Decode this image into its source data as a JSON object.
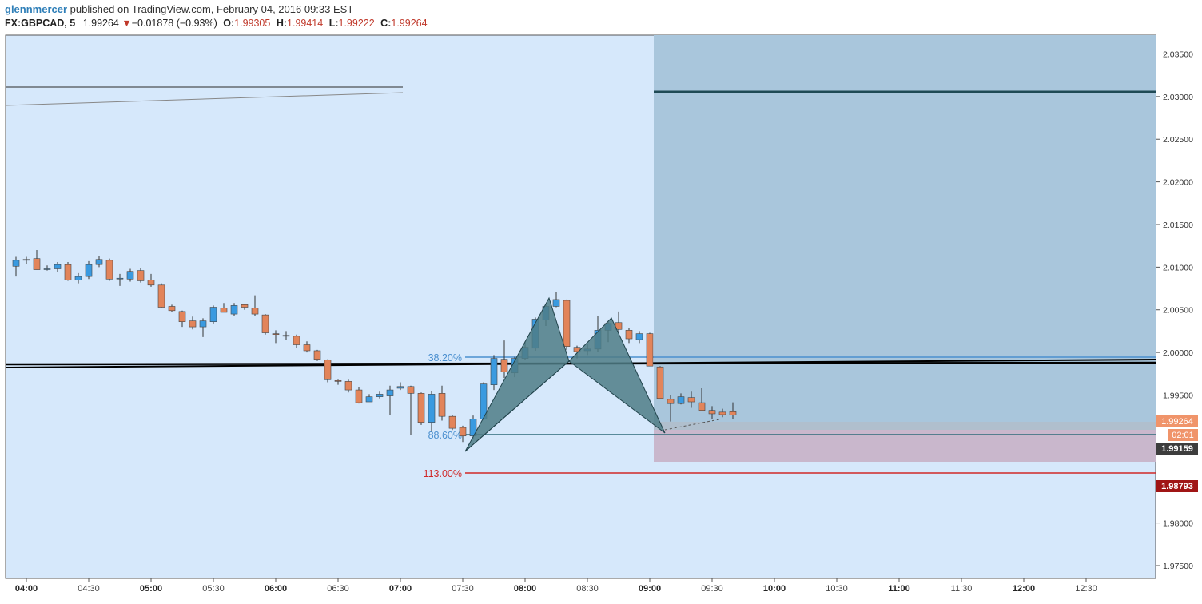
{
  "header": {
    "author": "glennmercer",
    "published_text": "published on TradingView.com, February 04, 2016 09:33 EST"
  },
  "symbol_bar": {
    "symbol": "FX:GBPCAD, 5",
    "last": "1.99264",
    "change": "−0.01878 (−0.93%)",
    "open_label": "O:",
    "open": "1.99305",
    "high_label": "H:",
    "high": "1.99414",
    "low_label": "L:",
    "low": "1.99222",
    "close_label": "C:",
    "close": "1.99264"
  },
  "colors": {
    "background": "#d6e8fb",
    "up": "#3a9ae0",
    "down": "#e2845a",
    "target_zone": "#a9c6dc",
    "stop_zone": "#c9b7cc",
    "harmonic_fill": "#4f7c86",
    "fib_38": "#4a8fcf",
    "fib_886": "#2f6b7a",
    "fib_113": "#d02828"
  },
  "price_axis": {
    "ticks": [
      "2.03500",
      "2.03000",
      "2.02500",
      "2.02000",
      "2.01500",
      "2.01000",
      "2.00500",
      "2.00000",
      "1.99500",
      "1.98000",
      "1.97500"
    ],
    "labels": {
      "last_price": "1.99264",
      "countdown": "02:01",
      "entry": "1.99159",
      "stop": "1.98793"
    }
  },
  "time_axis": {
    "ticks": [
      "04:00",
      "04:30",
      "05:00",
      "05:30",
      "06:00",
      "06:30",
      "07:00",
      "07:30",
      "08:00",
      "08:30",
      "09:00",
      "09:30",
      "10:00",
      "10:30",
      "11:00",
      "11:30",
      "12:00",
      "12:30"
    ]
  },
  "fib_labels": {
    "fib_38": "38.20%",
    "fib_886": "88.60%",
    "fib_113": "113.00%"
  },
  "chart_data": {
    "type": "candlestick",
    "symbol": "FX:GBPCAD",
    "interval": "5",
    "ylim": [
      1.9735,
      2.0372
    ],
    "candles": [
      {
        "t": "03:55",
        "o": 2.0101,
        "h": 2.0112,
        "l": 2.0089,
        "c": 2.0108
      },
      {
        "t": "04:00",
        "o": 2.0108,
        "h": 2.0112,
        "l": 2.0104,
        "c": 2.0109
      },
      {
        "t": "04:05",
        "o": 2.011,
        "h": 2.012,
        "l": 2.0097,
        "c": 2.0097
      },
      {
        "t": "04:10",
        "o": 2.0098,
        "h": 2.0102,
        "l": 2.0096,
        "c": 2.0098
      },
      {
        "t": "04:15",
        "o": 2.0098,
        "h": 2.0106,
        "l": 2.0094,
        "c": 2.0103
      },
      {
        "t": "04:20",
        "o": 2.0103,
        "h": 2.0106,
        "l": 2.0084,
        "c": 2.0085
      },
      {
        "t": "04:25",
        "o": 2.0085,
        "h": 2.0093,
        "l": 2.0081,
        "c": 2.0089
      },
      {
        "t": "04:30",
        "o": 2.0089,
        "h": 2.0107,
        "l": 2.0086,
        "c": 2.0103
      },
      {
        "t": "04:35",
        "o": 2.0103,
        "h": 2.0113,
        "l": 2.01,
        "c": 2.0109
      },
      {
        "t": "04:40",
        "o": 2.0108,
        "h": 2.011,
        "l": 2.0084,
        "c": 2.0086
      },
      {
        "t": "04:45",
        "o": 2.0087,
        "h": 2.0092,
        "l": 2.0078,
        "c": 2.0087
      },
      {
        "t": "04:50",
        "o": 2.0086,
        "h": 2.0098,
        "l": 2.0083,
        "c": 2.0095
      },
      {
        "t": "04:55",
        "o": 2.0096,
        "h": 2.0099,
        "l": 2.0082,
        "c": 2.0084
      },
      {
        "t": "05:00",
        "o": 2.0085,
        "h": 2.0092,
        "l": 2.0077,
        "c": 2.0079
      },
      {
        "t": "05:05",
        "o": 2.0079,
        "h": 2.0081,
        "l": 2.0052,
        "c": 2.0053
      },
      {
        "t": "05:10",
        "o": 2.0054,
        "h": 2.0056,
        "l": 2.0047,
        "c": 2.0049
      },
      {
        "t": "05:15",
        "o": 2.0048,
        "h": 2.0049,
        "l": 2.003,
        "c": 2.0036
      },
      {
        "t": "05:20",
        "o": 2.0037,
        "h": 2.0042,
        "l": 2.0027,
        "c": 2.003
      },
      {
        "t": "05:25",
        "o": 2.003,
        "h": 2.004,
        "l": 2.0018,
        "c": 2.0037
      },
      {
        "t": "05:30",
        "o": 2.0036,
        "h": 2.0055,
        "l": 2.0034,
        "c": 2.0053
      },
      {
        "t": "05:35",
        "o": 2.0052,
        "h": 2.0058,
        "l": 2.0047,
        "c": 2.0047
      },
      {
        "t": "05:40",
        "o": 2.0045,
        "h": 2.0058,
        "l": 2.0043,
        "c": 2.0055
      },
      {
        "t": "05:45",
        "o": 2.0056,
        "h": 2.0057,
        "l": 2.005,
        "c": 2.0053
      },
      {
        "t": "05:50",
        "o": 2.0052,
        "h": 2.0067,
        "l": 2.0043,
        "c": 2.0045
      },
      {
        "t": "05:55",
        "o": 2.0044,
        "h": 2.0045,
        "l": 2.0021,
        "c": 2.0023
      },
      {
        "t": "06:00",
        "o": 2.0022,
        "h": 2.0026,
        "l": 2.0011,
        "c": 2.0021
      },
      {
        "t": "06:05",
        "o": 2.002,
        "h": 2.0025,
        "l": 2.0015,
        "c": 2.0019
      },
      {
        "t": "06:10",
        "o": 2.0019,
        "h": 2.0021,
        "l": 2.0005,
        "c": 2.0009
      },
      {
        "t": "06:15",
        "o": 2.0009,
        "h": 2.0013,
        "l": 2.0,
        "c": 2.0002
      },
      {
        "t": "06:20",
        "o": 2.0002,
        "h": 2.0003,
        "l": 1.999,
        "c": 1.9992
      },
      {
        "t": "06:25",
        "o": 1.9991,
        "h": 1.9992,
        "l": 1.9965,
        "c": 1.9968
      },
      {
        "t": "06:30",
        "o": 1.9967,
        "h": 1.9968,
        "l": 1.9962,
        "c": 1.9966
      },
      {
        "t": "06:35",
        "o": 1.9966,
        "h": 1.9968,
        "l": 1.9953,
        "c": 1.9956
      },
      {
        "t": "06:40",
        "o": 1.9956,
        "h": 1.9959,
        "l": 1.994,
        "c": 1.9941
      },
      {
        "t": "06:45",
        "o": 1.9942,
        "h": 1.9951,
        "l": 1.9942,
        "c": 1.9948
      },
      {
        "t": "06:50",
        "o": 1.9948,
        "h": 1.9954,
        "l": 1.9946,
        "c": 1.9951
      },
      {
        "t": "06:55",
        "o": 1.9949,
        "h": 1.9961,
        "l": 1.9927,
        "c": 1.9956
      },
      {
        "t": "07:00",
        "o": 1.9958,
        "h": 1.9965,
        "l": 1.9956,
        "c": 1.996
      },
      {
        "t": "07:05",
        "o": 1.996,
        "h": 1.9961,
        "l": 1.9903,
        "c": 1.9952
      },
      {
        "t": "07:10",
        "o": 1.9952,
        "h": 1.9953,
        "l": 1.9915,
        "c": 1.9918
      },
      {
        "t": "07:15",
        "o": 1.9918,
        "h": 1.9955,
        "l": 1.9907,
        "c": 1.9951
      },
      {
        "t": "07:20",
        "o": 1.9952,
        "h": 1.9961,
        "l": 1.992,
        "c": 1.9925
      },
      {
        "t": "07:25",
        "o": 1.9925,
        "h": 1.9927,
        "l": 1.9909,
        "c": 1.9911
      },
      {
        "t": "07:30",
        "o": 1.9912,
        "h": 1.9914,
        "l": 1.9895,
        "c": 1.9902
      },
      {
        "t": "07:35",
        "o": 1.9902,
        "h": 1.9926,
        "l": 1.9899,
        "c": 1.9922
      },
      {
        "t": "07:40",
        "o": 1.9922,
        "h": 1.9965,
        "l": 1.9921,
        "c": 1.9963
      },
      {
        "t": "07:45",
        "o": 1.9962,
        "h": 1.9997,
        "l": 1.9956,
        "c": 1.9993
      },
      {
        "t": "07:50",
        "o": 1.9992,
        "h": 2.0014,
        "l": 1.997,
        "c": 1.9977
      },
      {
        "t": "07:55",
        "o": 1.9976,
        "h": 1.9995,
        "l": 1.9971,
        "c": 1.9993
      },
      {
        "t": "08:00",
        "o": 1.9993,
        "h": 2.0013,
        "l": 1.9991,
        "c": 2.0006
      },
      {
        "t": "08:05",
        "o": 2.0005,
        "h": 2.0041,
        "l": 2.0002,
        "c": 2.0039
      },
      {
        "t": "08:10",
        "o": 2.0038,
        "h": 2.0056,
        "l": 2.0031,
        "c": 2.0054
      },
      {
        "t": "08:15",
        "o": 2.0054,
        "h": 2.0071,
        "l": 2.0053,
        "c": 2.0062
      },
      {
        "t": "08:20",
        "o": 2.0061,
        "h": 2.0062,
        "l": 2.0003,
        "c": 2.0007
      },
      {
        "t": "08:25",
        "o": 2.0006,
        "h": 2.0008,
        "l": 1.9993,
        "c": 2.0001
      },
      {
        "t": "08:30",
        "o": 2.0002,
        "h": 2.001,
        "l": 1.9997,
        "c": 2.0004
      },
      {
        "t": "08:35",
        "o": 2.0004,
        "h": 2.0043,
        "l": 2.0001,
        "c": 2.0026
      },
      {
        "t": "08:40",
        "o": 2.0026,
        "h": 2.0037,
        "l": 2.0012,
        "c": 2.0034
      },
      {
        "t": "08:45",
        "o": 2.0035,
        "h": 2.0048,
        "l": 2.0024,
        "c": 2.0027
      },
      {
        "t": "08:50",
        "o": 2.0026,
        "h": 2.0029,
        "l": 2.0011,
        "c": 2.0016
      },
      {
        "t": "08:55",
        "o": 2.0015,
        "h": 2.0025,
        "l": 2.0011,
        "c": 2.0022
      },
      {
        "t": "09:00",
        "o": 2.0022,
        "h": 2.0023,
        "l": 1.9984,
        "c": 1.9984
      },
      {
        "t": "09:05",
        "o": 1.9983,
        "h": 1.9984,
        "l": 1.9945,
        "c": 1.9946
      },
      {
        "t": "09:10",
        "o": 1.9945,
        "h": 1.995,
        "l": 1.9919,
        "c": 1.994
      },
      {
        "t": "09:15",
        "o": 1.994,
        "h": 1.9952,
        "l": 1.9939,
        "c": 1.9948
      },
      {
        "t": "09:20",
        "o": 1.9947,
        "h": 1.9954,
        "l": 1.9935,
        "c": 1.9942
      },
      {
        "t": "09:25",
        "o": 1.9941,
        "h": 1.9958,
        "l": 1.9932,
        "c": 1.9932
      },
      {
        "t": "09:30",
        "o": 1.9932,
        "h": 1.9937,
        "l": 1.9922,
        "c": 1.9928
      },
      {
        "t": "09:35",
        "o": 1.993,
        "h": 1.9934,
        "l": 1.9924,
        "c": 1.9927
      },
      {
        "t": "09:40",
        "o": 1.99305,
        "h": 1.99414,
        "l": 1.99222,
        "c": 1.99264
      }
    ],
    "harmonic_pattern": {
      "X": {
        "t": "07:30",
        "price": 1.9896
      },
      "A": {
        "t": "08:05",
        "price": 2.0071
      },
      "B": {
        "t": "08:15",
        "price": 1.9998
      },
      "C": {
        "t": "08:35",
        "price": 2.0048
      },
      "D": {
        "t": "09:05",
        "price": 1.9918
      }
    },
    "levels": [
      {
        "label": "38.20%",
        "price": 2.0002
      },
      {
        "label": "88.60%",
        "price": 1.99159
      },
      {
        "label": "113.00%",
        "price": 1.98793
      }
    ],
    "position": {
      "entry": 1.99159,
      "target": 2.0308,
      "stop": 1.98793
    }
  }
}
